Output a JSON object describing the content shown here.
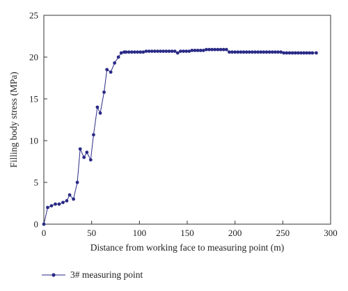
{
  "chart_data": {
    "type": "line",
    "xlabel": "Distance from working face to measuring point (m)",
    "ylabel": "Filling body stress (MPa)",
    "xlim": [
      0,
      300
    ],
    "ylim": [
      0,
      25
    ],
    "xticks": [
      0,
      50,
      100,
      150,
      200,
      250,
      300
    ],
    "yticks": [
      0,
      5,
      10,
      15,
      20,
      25
    ],
    "grid": false,
    "legend_position": "bottom-left",
    "color": "#2a2a86",
    "series": [
      {
        "name": "3# measuring point",
        "x": [
          0,
          4,
          8,
          12,
          16,
          20,
          24,
          27,
          31,
          35,
          38,
          42,
          45,
          49,
          52,
          56,
          59,
          63,
          66,
          70,
          74,
          78,
          81,
          84,
          86,
          89,
          92,
          95,
          98,
          101,
          104,
          107,
          110,
          113,
          116,
          119,
          122,
          125,
          128,
          131,
          134,
          137,
          140,
          143,
          146,
          149,
          152,
          155,
          158,
          161,
          164,
          167,
          170,
          173,
          176,
          179,
          182,
          185,
          188,
          191,
          194,
          197,
          200,
          203,
          206,
          209,
          212,
          215,
          218,
          221,
          224,
          227,
          230,
          233,
          236,
          239,
          242,
          245,
          248,
          251,
          254,
          257,
          260,
          263,
          266,
          269,
          272,
          275,
          278,
          281,
          285
        ],
        "y": [
          0,
          2.0,
          2.2,
          2.4,
          2.4,
          2.6,
          2.8,
          3.5,
          3.0,
          5.0,
          9.0,
          8.0,
          8.6,
          7.7,
          10.7,
          14.0,
          13.3,
          15.8,
          18.5,
          18.2,
          19.3,
          20.0,
          20.5,
          20.6,
          20.6,
          20.6,
          20.6,
          20.6,
          20.6,
          20.6,
          20.6,
          20.7,
          20.7,
          20.7,
          20.7,
          20.7,
          20.7,
          20.7,
          20.7,
          20.7,
          20.7,
          20.7,
          20.5,
          20.7,
          20.7,
          20.7,
          20.7,
          20.8,
          20.8,
          20.8,
          20.8,
          20.8,
          20.9,
          20.9,
          20.9,
          20.9,
          20.9,
          20.9,
          20.9,
          20.9,
          20.6,
          20.6,
          20.6,
          20.6,
          20.6,
          20.6,
          20.6,
          20.6,
          20.6,
          20.6,
          20.6,
          20.6,
          20.6,
          20.6,
          20.6,
          20.6,
          20.6,
          20.6,
          20.6,
          20.5,
          20.5,
          20.5,
          20.5,
          20.5,
          20.5,
          20.5,
          20.5,
          20.5,
          20.5,
          20.5,
          20.5
        ]
      }
    ]
  }
}
